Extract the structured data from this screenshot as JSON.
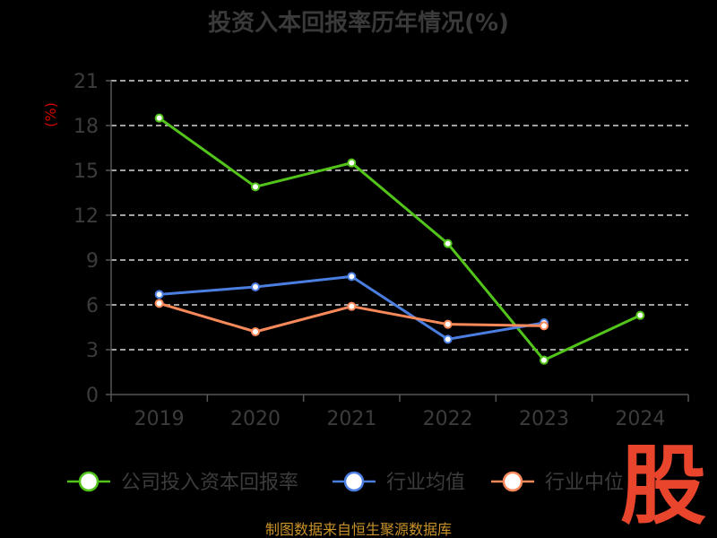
{
  "chart_data": {
    "type": "line",
    "title": "投资入本回报率历年情况(%)",
    "ylabel": "(%)",
    "categories": [
      "2019",
      "2020",
      "2021",
      "2022",
      "2023",
      "2024"
    ],
    "ylim": [
      0,
      21
    ],
    "yticks": [
      0,
      3,
      6,
      9,
      12,
      15,
      18,
      21
    ],
    "grid": "horizontal-dashed",
    "legend_placement": "bottom",
    "series": [
      {
        "name": "公司投入资本回报率",
        "color": "#52c41a",
        "values": [
          18.5,
          13.9,
          15.5,
          10.1,
          2.3,
          5.3
        ]
      },
      {
        "name": "行业均值",
        "color": "#4a7ee0",
        "values": [
          6.7,
          7.2,
          7.9,
          3.7,
          4.8,
          null
        ]
      },
      {
        "name": "行业中位",
        "color": "#f7895a",
        "values": [
          6.1,
          4.2,
          5.9,
          4.7,
          4.6,
          null
        ]
      }
    ]
  },
  "footer": {
    "source": "制图数据来自恒生聚源数据库"
  },
  "watermark": {
    "text": "股"
  }
}
